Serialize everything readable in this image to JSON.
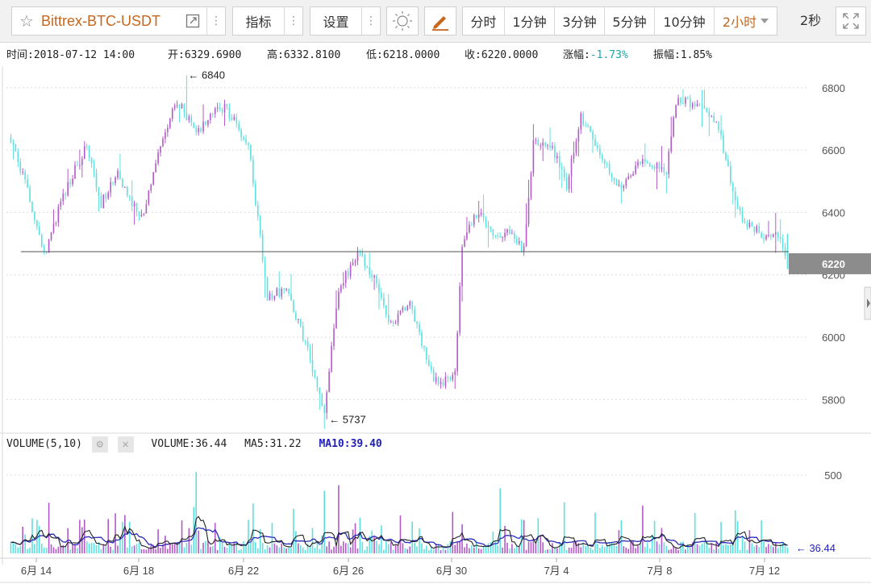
{
  "toolbar": {
    "symbol": "Bittrex-BTC-USDT",
    "indicators_label": "指标",
    "settings_label": "设置",
    "periods": [
      "分时",
      "1分钟",
      "3分钟",
      "5分钟",
      "10分钟",
      "2小时"
    ],
    "active_period": "2小时",
    "refresh_label": "2秒",
    "icons": [
      "star-icon",
      "external-link-icon",
      "more-dots-icon",
      "sun-icon",
      "pencil-icon",
      "caret-down-icon",
      "fullscreen-icon"
    ]
  },
  "info": {
    "time_label": "时间:",
    "time": "2018-07-12 14:00",
    "open_label": "开:",
    "open": "6329.6900",
    "high_label": "高:",
    "high": "6332.8100",
    "low_label": "低:",
    "low": "6218.0000",
    "close_label": "收:",
    "close": "6220.0000",
    "change_label": "涨幅:",
    "change": "-1.73%",
    "amplitude_label": "振幅:",
    "amplitude": "1.85%"
  },
  "volume": {
    "title": "VOLUME(5,10)",
    "volume_label": "VOLUME:",
    "volume": "36.44",
    "ma5_label": "MA5:",
    "ma5": "31.22",
    "ma10_label": "MA10:",
    "ma10": "39.40"
  },
  "colors": {
    "up": "#b35cc8",
    "down": "#5fe0e0",
    "ma5": "#222222",
    "ma10": "#2b2bb8",
    "price_tag_bg": "#8c8c8c",
    "change_negative": "#19a7a4",
    "accent": "#c7671e"
  },
  "chart_data": [
    {
      "type": "candlestick",
      "title": "",
      "y_ticks": [
        5800,
        6000,
        6200,
        6400,
        6600,
        6800
      ],
      "ylim": [
        5700,
        6860
      ],
      "x_tick_labels": [
        "6月 14",
        "6月 18",
        "6月 22",
        "6月 26",
        "6月 30",
        "7月 4",
        "7月 8",
        "7月 12"
      ],
      "current_price": 6220,
      "current_price_label": "6220",
      "max_marker": {
        "value": 6840,
        "label": "← 6840"
      },
      "min_marker": {
        "value": 5737,
        "label": "← 5737"
      },
      "anchors": [
        {
          "i": 0,
          "v": 6640
        },
        {
          "i": 8,
          "v": 6440
        },
        {
          "i": 14,
          "v": 6260
        },
        {
          "i": 22,
          "v": 6450
        },
        {
          "i": 32,
          "v": 6620
        },
        {
          "i": 38,
          "v": 6430
        },
        {
          "i": 45,
          "v": 6520
        },
        {
          "i": 55,
          "v": 6380
        },
        {
          "i": 62,
          "v": 6600
        },
        {
          "i": 70,
          "v": 6760
        },
        {
          "i": 78,
          "v": 6660
        },
        {
          "i": 84,
          "v": 6710
        },
        {
          "i": 90,
          "v": 6740
        },
        {
          "i": 100,
          "v": 6620
        },
        {
          "i": 108,
          "v": 6130
        },
        {
          "i": 116,
          "v": 6150
        },
        {
          "i": 124,
          "v": 5980
        },
        {
          "i": 132,
          "v": 5760
        },
        {
          "i": 138,
          "v": 6150
        },
        {
          "i": 146,
          "v": 6270
        },
        {
          "i": 154,
          "v": 6180
        },
        {
          "i": 160,
          "v": 6040
        },
        {
          "i": 168,
          "v": 6120
        },
        {
          "i": 176,
          "v": 5900
        },
        {
          "i": 180,
          "v": 5840
        },
        {
          "i": 187,
          "v": 5880
        },
        {
          "i": 190,
          "v": 6300
        },
        {
          "i": 196,
          "v": 6400
        },
        {
          "i": 204,
          "v": 6330
        },
        {
          "i": 212,
          "v": 6330
        },
        {
          "i": 216,
          "v": 6280
        },
        {
          "i": 220,
          "v": 6620
        },
        {
          "i": 228,
          "v": 6610
        },
        {
          "i": 234,
          "v": 6480
        },
        {
          "i": 240,
          "v": 6710
        },
        {
          "i": 248,
          "v": 6600
        },
        {
          "i": 256,
          "v": 6480
        },
        {
          "i": 264,
          "v": 6560
        },
        {
          "i": 270,
          "v": 6560
        },
        {
          "i": 276,
          "v": 6520
        },
        {
          "i": 280,
          "v": 6760
        },
        {
          "i": 290,
          "v": 6740
        },
        {
          "i": 298,
          "v": 6680
        },
        {
          "i": 304,
          "v": 6460
        },
        {
          "i": 308,
          "v": 6380
        },
        {
          "i": 316,
          "v": 6330
        },
        {
          "i": 324,
          "v": 6330
        },
        {
          "i": 327,
          "v": 6220
        }
      ]
    },
    {
      "type": "bar",
      "title": "VOLUME(5,10)",
      "y_ticks": [
        500
      ],
      "ylim": [
        0,
        760
      ],
      "series": [
        {
          "name": "MA5",
          "value": 31.22
        },
        {
          "name": "MA10",
          "value": 39.4
        }
      ],
      "current_volume_label": "← 36.44",
      "current_volume": 36.44
    }
  ]
}
